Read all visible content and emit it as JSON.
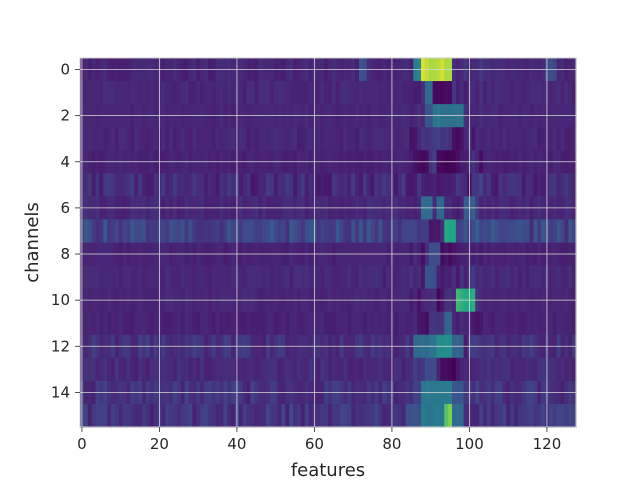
{
  "chart_data": {
    "type": "heatmap",
    "title": "",
    "xlabel": "features",
    "ylabel": "channels",
    "x_range": [
      0,
      128
    ],
    "y_range": [
      0,
      16
    ],
    "x_ticks": [
      0,
      20,
      40,
      60,
      80,
      100,
      120
    ],
    "y_ticks": [
      0,
      2,
      4,
      6,
      8,
      10,
      12,
      14
    ],
    "y_axis_inverted": true,
    "grid": true,
    "colormap": "viridis",
    "n_channels": 16,
    "n_features": 128,
    "row_baseline": [
      0.13,
      0.14,
      0.13,
      0.13,
      0.12,
      0.15,
      0.14,
      0.26,
      0.12,
      0.14,
      0.13,
      0.12,
      0.17,
      0.15,
      0.18,
      0.19
    ],
    "row_left_noise": [
      0.03,
      0.03,
      0.02,
      0.03,
      0.02,
      0.07,
      0.03,
      0.1,
      0.02,
      0.03,
      0.02,
      0.02,
      0.06,
      0.04,
      0.07,
      0.08
    ],
    "hotspots": [
      {
        "channel": 0,
        "feature_start": 88,
        "feature_end": 96,
        "value": 0.95
      },
      {
        "channel": 0,
        "feature_start": 86,
        "feature_end": 88,
        "value": 0.55
      },
      {
        "channel": 0,
        "feature_start": 72,
        "feature_end": 74,
        "value": 0.3
      },
      {
        "channel": 0,
        "feature_start": 120,
        "feature_end": 123,
        "value": 0.3
      },
      {
        "channel": 1,
        "feature_start": 89,
        "feature_end": 91,
        "value": 0.42
      },
      {
        "channel": 1,
        "feature_start": 91,
        "feature_end": 96,
        "value": 0.05
      },
      {
        "channel": 2,
        "feature_start": 89,
        "feature_end": 91,
        "value": 0.35
      },
      {
        "channel": 2,
        "feature_start": 91,
        "feature_end": 99,
        "value": 0.48
      },
      {
        "channel": 3,
        "feature_start": 88,
        "feature_end": 96,
        "value": 0.2
      },
      {
        "channel": 3,
        "feature_start": 96,
        "feature_end": 98,
        "value": 0.04
      },
      {
        "channel": 4,
        "feature_start": 87,
        "feature_end": 90,
        "value": 0.02
      },
      {
        "channel": 4,
        "feature_start": 90,
        "feature_end": 92,
        "value": 0.2
      },
      {
        "channel": 4,
        "feature_start": 92,
        "feature_end": 97,
        "value": 0.0
      },
      {
        "channel": 5,
        "feature_start": 88,
        "feature_end": 96,
        "value": 0.1
      },
      {
        "channel": 6,
        "feature_start": 88,
        "feature_end": 91,
        "value": 0.45
      },
      {
        "channel": 6,
        "feature_start": 92,
        "feature_end": 94,
        "value": 0.4
      },
      {
        "channel": 6,
        "feature_start": 99,
        "feature_end": 102,
        "value": 0.35
      },
      {
        "channel": 7,
        "feature_start": 94,
        "feature_end": 97,
        "value": 0.75
      },
      {
        "channel": 7,
        "feature_start": 90,
        "feature_end": 93,
        "value": 0.1
      },
      {
        "channel": 8,
        "feature_start": 90,
        "feature_end": 93,
        "value": 0.3
      },
      {
        "channel": 8,
        "feature_start": 93,
        "feature_end": 96,
        "value": 0.05
      },
      {
        "channel": 9,
        "feature_start": 89,
        "feature_end": 92,
        "value": 0.3
      },
      {
        "channel": 9,
        "feature_start": 93,
        "feature_end": 96,
        "value": 0.1
      },
      {
        "channel": 10,
        "feature_start": 97,
        "feature_end": 102,
        "value": 0.78
      },
      {
        "channel": 10,
        "feature_start": 92,
        "feature_end": 94,
        "value": 0.05
      },
      {
        "channel": 11,
        "feature_start": 90,
        "feature_end": 94,
        "value": 0.2
      },
      {
        "channel": 11,
        "feature_start": 94,
        "feature_end": 96,
        "value": 0.4
      },
      {
        "channel": 12,
        "feature_start": 86,
        "feature_end": 92,
        "value": 0.45
      },
      {
        "channel": 12,
        "feature_start": 92,
        "feature_end": 96,
        "value": 0.62
      },
      {
        "channel": 12,
        "feature_start": 96,
        "feature_end": 99,
        "value": 0.4
      },
      {
        "channel": 13,
        "feature_start": 93,
        "feature_end": 97,
        "value": 0.02
      },
      {
        "channel": 13,
        "feature_start": 89,
        "feature_end": 92,
        "value": 0.3
      },
      {
        "channel": 14,
        "feature_start": 88,
        "feature_end": 96,
        "value": 0.5
      },
      {
        "channel": 14,
        "feature_start": 96,
        "feature_end": 99,
        "value": 0.35
      },
      {
        "channel": 15,
        "feature_start": 84,
        "feature_end": 88,
        "value": 0.3
      },
      {
        "channel": 15,
        "feature_start": 88,
        "feature_end": 94,
        "value": 0.5
      },
      {
        "channel": 15,
        "feature_start": 94,
        "feature_end": 96,
        "value": 0.85
      },
      {
        "channel": 15,
        "feature_start": 96,
        "feature_end": 99,
        "value": 0.45
      }
    ]
  },
  "colors": {
    "axes_spine": "#cccccc",
    "grid": "#d9d9d9",
    "text": "#262626"
  }
}
